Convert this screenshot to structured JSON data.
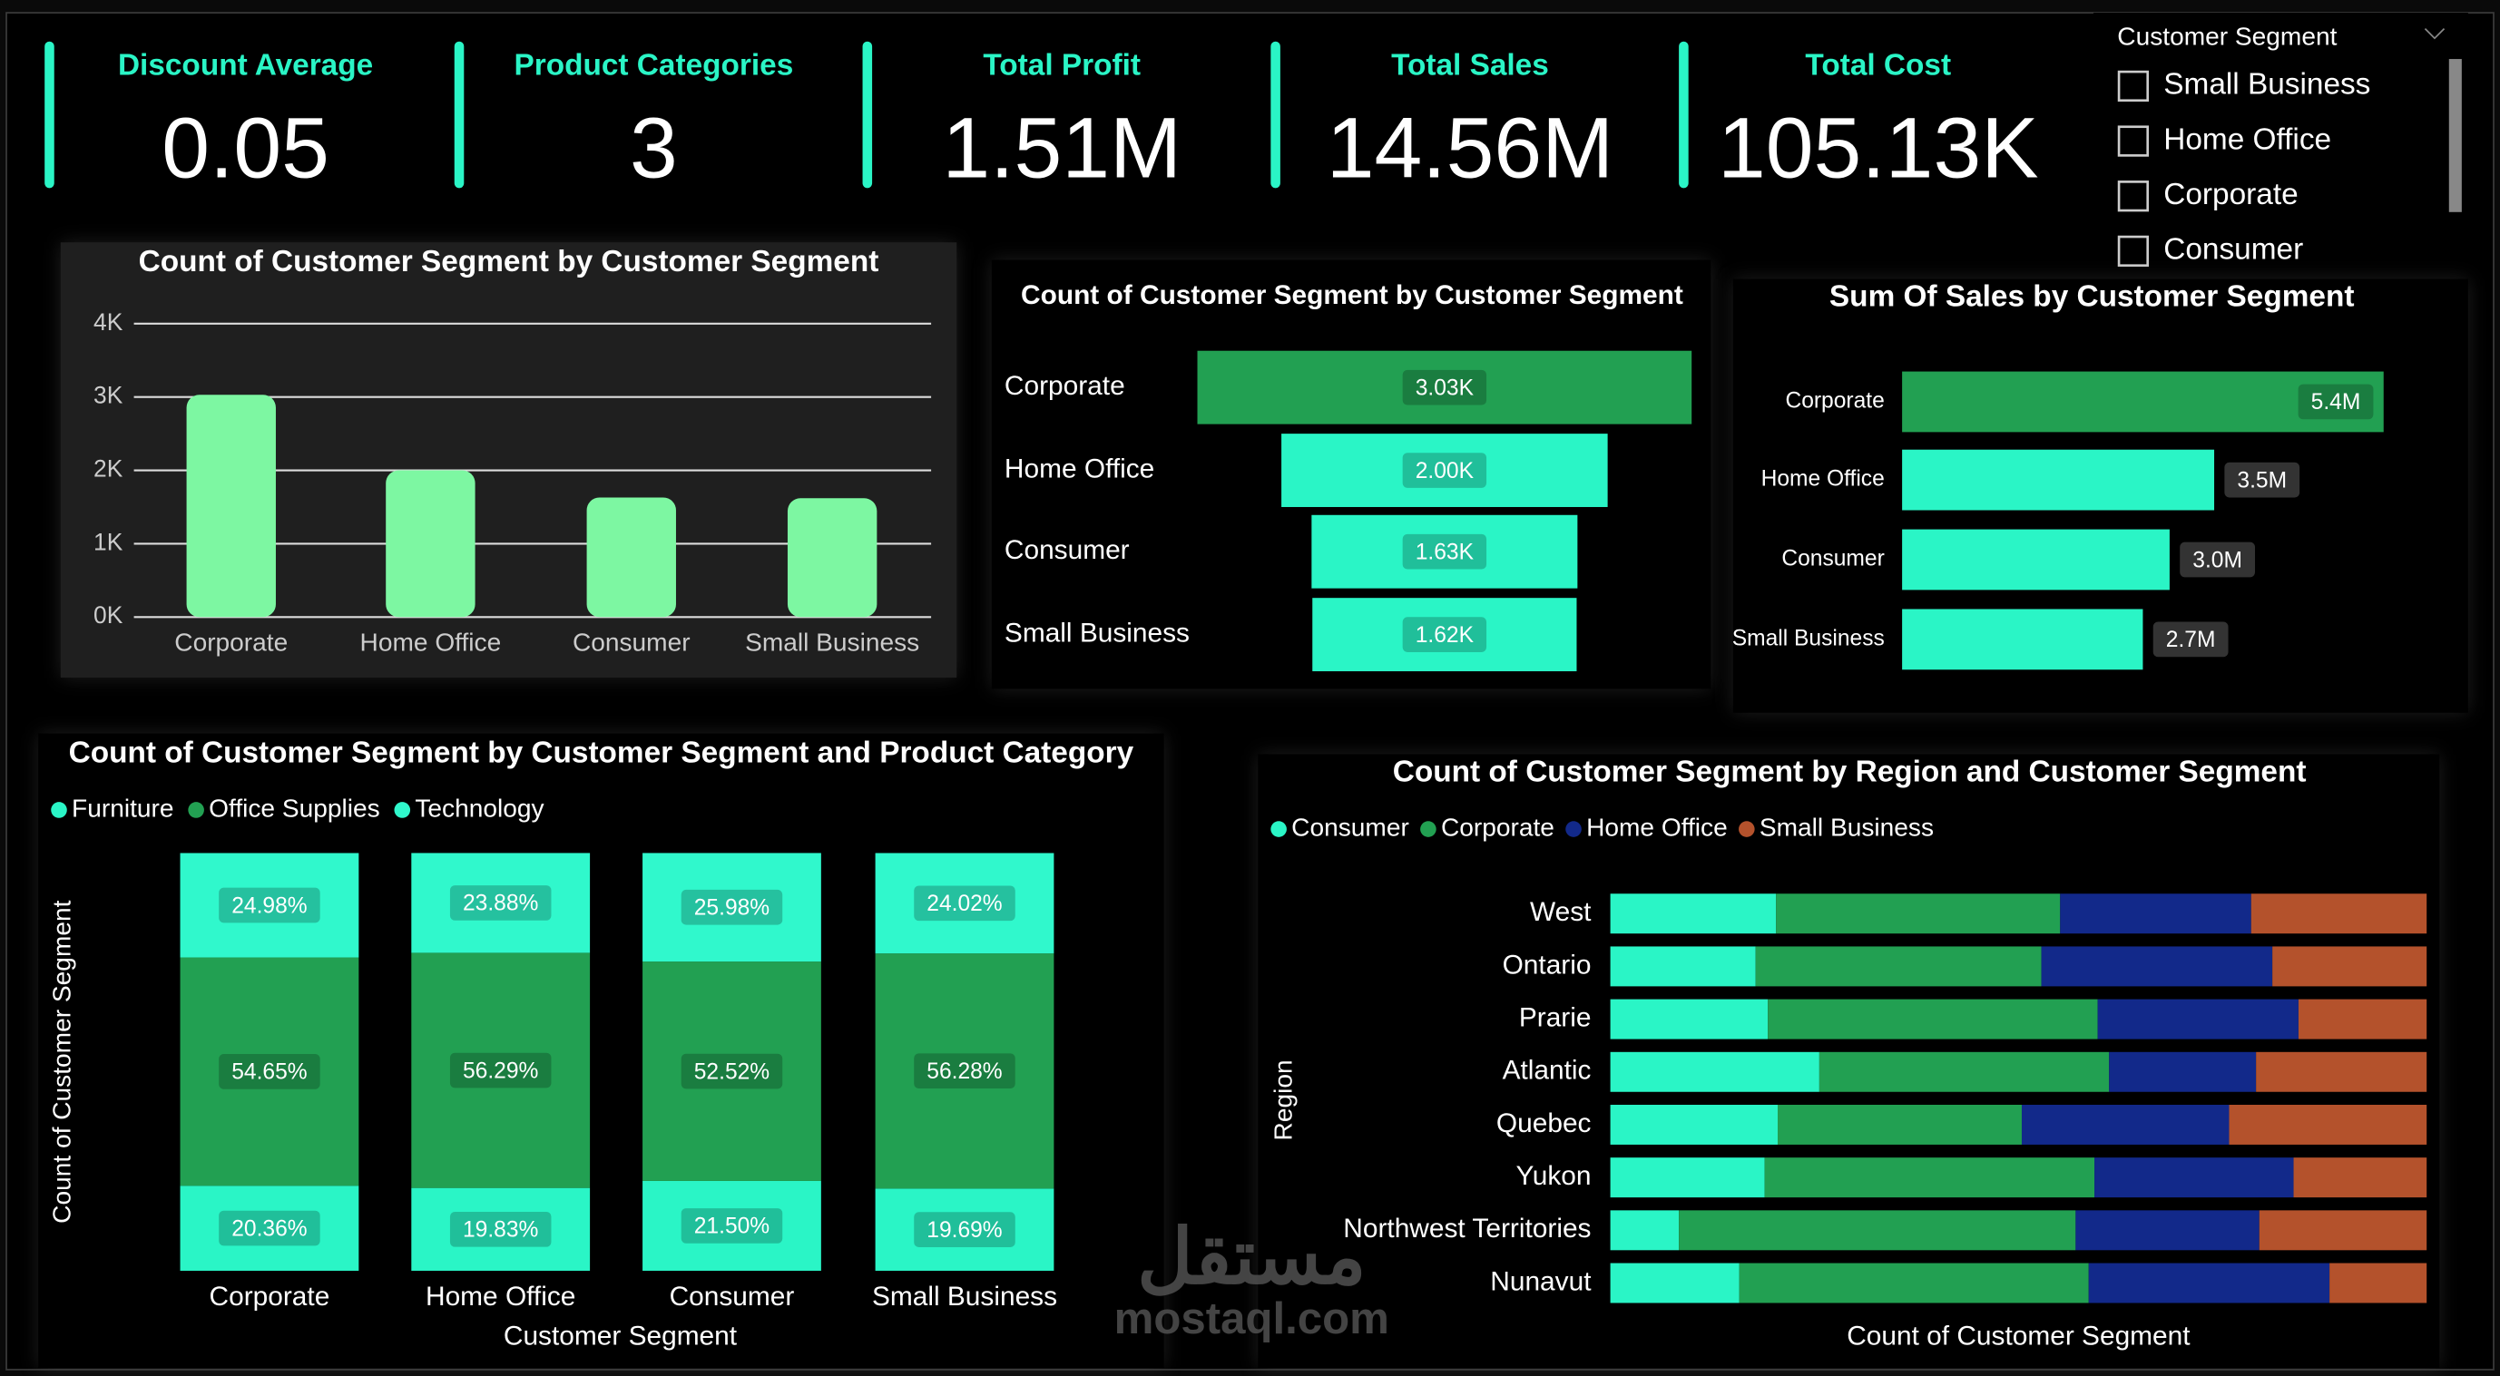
{
  "kpis": [
    {
      "label": "Discount Average",
      "value": "0.05"
    },
    {
      "label": "Product Categories",
      "value": "3"
    },
    {
      "label": "Total Profit",
      "value": "1.51M"
    },
    {
      "label": "Total Sales",
      "value": "14.56M"
    },
    {
      "label": "Total Cost",
      "value": "105.13K"
    }
  ],
  "slicer": {
    "title": "Customer Segment",
    "items": [
      "Small Business",
      "Home Office",
      "Corporate",
      "Consumer"
    ]
  },
  "watermark": {
    "arabic": "مستقل",
    "latin": "mostaql.com"
  },
  "chart_data": [
    {
      "type": "pictogram",
      "title": "Count of Customer Segment by Customer Segment",
      "categories": [
        "Corporate",
        "Home Office",
        "Consumer",
        "Small Business"
      ],
      "values": [
        3030,
        2000,
        1630,
        1620
      ],
      "color": "#7df7a2",
      "ylim": [
        0,
        4000
      ],
      "yticks": [
        {
          "value": 0,
          "label": "0K"
        },
        {
          "value": 1000,
          "label": "1K"
        },
        {
          "value": 2000,
          "label": "2K"
        },
        {
          "value": 3000,
          "label": "3K"
        },
        {
          "value": 4000,
          "label": "4K"
        }
      ],
      "grid": true
    },
    {
      "type": "funnel",
      "title": "Count of Customer Segment by Customer Segment",
      "categories": [
        "Corporate",
        "Home Office",
        "Consumer",
        "Small Business"
      ],
      "values": [
        3030,
        2000,
        1630,
        1620
      ],
      "value_labels": [
        "3.03K",
        "2.00K",
        "1.63K",
        "1.62K"
      ],
      "colors": [
        "#22a052",
        "#2af5c6",
        "#2af5c6",
        "#2af5c6"
      ]
    },
    {
      "type": "hbar",
      "title": "Sum Of Sales by Customer Segment",
      "categories": [
        "Corporate",
        "Home Office",
        "Consumer",
        "Small Business"
      ],
      "values": [
        5400000,
        3500000,
        3000000,
        2700000
      ],
      "value_labels": [
        "5.4M",
        "3.5M",
        "3.0M",
        "2.7M"
      ],
      "colors": [
        "#22a052",
        "#2af5c6",
        "#2af5c6",
        "#2af5c6"
      ]
    },
    {
      "type": "stacked100_column",
      "title": "Count of Customer Segment by Customer Segment and Product Category",
      "x_label": "Customer Segment",
      "y_label": "Count of Customer Segment",
      "categories": [
        "Corporate",
        "Home Office",
        "Consumer",
        "Small Business"
      ],
      "ylim": [
        0,
        100
      ],
      "series": [
        {
          "name": "Furniture",
          "color": "#2af5c6",
          "values": [
            20.36,
            19.83,
            21.5,
            19.69
          ],
          "value_labels": [
            "20.36%",
            "19.83%",
            "21.50%",
            "19.69%"
          ]
        },
        {
          "name": "Office Supplies",
          "color": "#22a052",
          "values": [
            54.65,
            56.29,
            52.52,
            56.28
          ],
          "value_labels": [
            "54.65%",
            "56.29%",
            "52.52%",
            "56.28%"
          ]
        },
        {
          "name": "Technology",
          "color": "#30f8cc",
          "values": [
            24.98,
            23.88,
            25.98,
            24.02
          ],
          "value_labels": [
            "24.98%",
            "23.88%",
            "25.98%",
            "24.02%"
          ]
        }
      ]
    },
    {
      "type": "stacked100_bar",
      "title": "Count of Customer Segment by Region and Customer Segment",
      "x_label": "Count of Customer Segment",
      "y_label": "Region",
      "categories": [
        "West",
        "Ontario",
        "Prarie",
        "Atlantic",
        "Quebec",
        "Yukon",
        "Northwest Territories",
        "Nunavut"
      ],
      "xlim": [
        0,
        100
      ],
      "series": [
        {
          "name": "Consumer",
          "color": "#2af5c6",
          "values": [
            20.3,
            17.8,
            19.3,
            25.6,
            20.5,
            18.9,
            8.4,
            15.8
          ]
        },
        {
          "name": "Corporate",
          "color": "#22a052",
          "values": [
            34.8,
            35.0,
            40.4,
            35.5,
            29.9,
            40.4,
            48.6,
            42.8
          ]
        },
        {
          "name": "Home Office",
          "color": "#12298a",
          "values": [
            23.4,
            28.3,
            24.6,
            18.0,
            25.4,
            24.4,
            22.5,
            29.5
          ]
        },
        {
          "name": "Small Business",
          "color": "#b4522c",
          "values": [
            21.5,
            18.9,
            15.7,
            20.9,
            24.2,
            16.3,
            20.5,
            11.9
          ]
        }
      ]
    }
  ]
}
